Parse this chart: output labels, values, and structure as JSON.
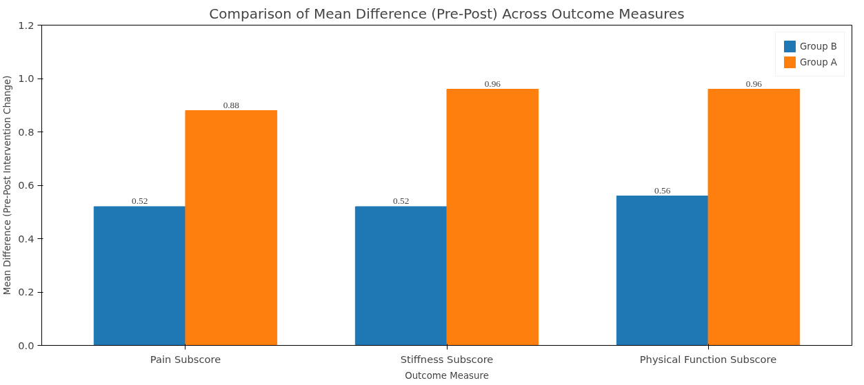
{
  "chart_data": {
    "type": "bar",
    "title": "Comparison of Mean Difference (Pre-Post) Across Outcome Measures",
    "xlabel": "Outcome Measure",
    "ylabel": "Mean Difference (Pre-Post Intervention Change)",
    "categories": [
      "Pain Subscore",
      "Stiffness Subscore",
      "Physical Function Subscore"
    ],
    "series": [
      {
        "name": "Group B",
        "color": "#1f77b4",
        "values": [
          0.52,
          0.52,
          0.56
        ]
      },
      {
        "name": "Group A",
        "color": "#ff7f0e",
        "values": [
          0.88,
          0.96,
          0.96
        ]
      }
    ],
    "ylim": [
      0,
      1.2
    ],
    "yticks": [
      {
        "value": 0,
        "label": "0.0"
      },
      0.2,
      0.4,
      0.6,
      0.8,
      {
        "value": 1,
        "label": "1.0"
      },
      1.2
    ],
    "data_labels": true,
    "legend": "top right",
    "grid": false
  }
}
